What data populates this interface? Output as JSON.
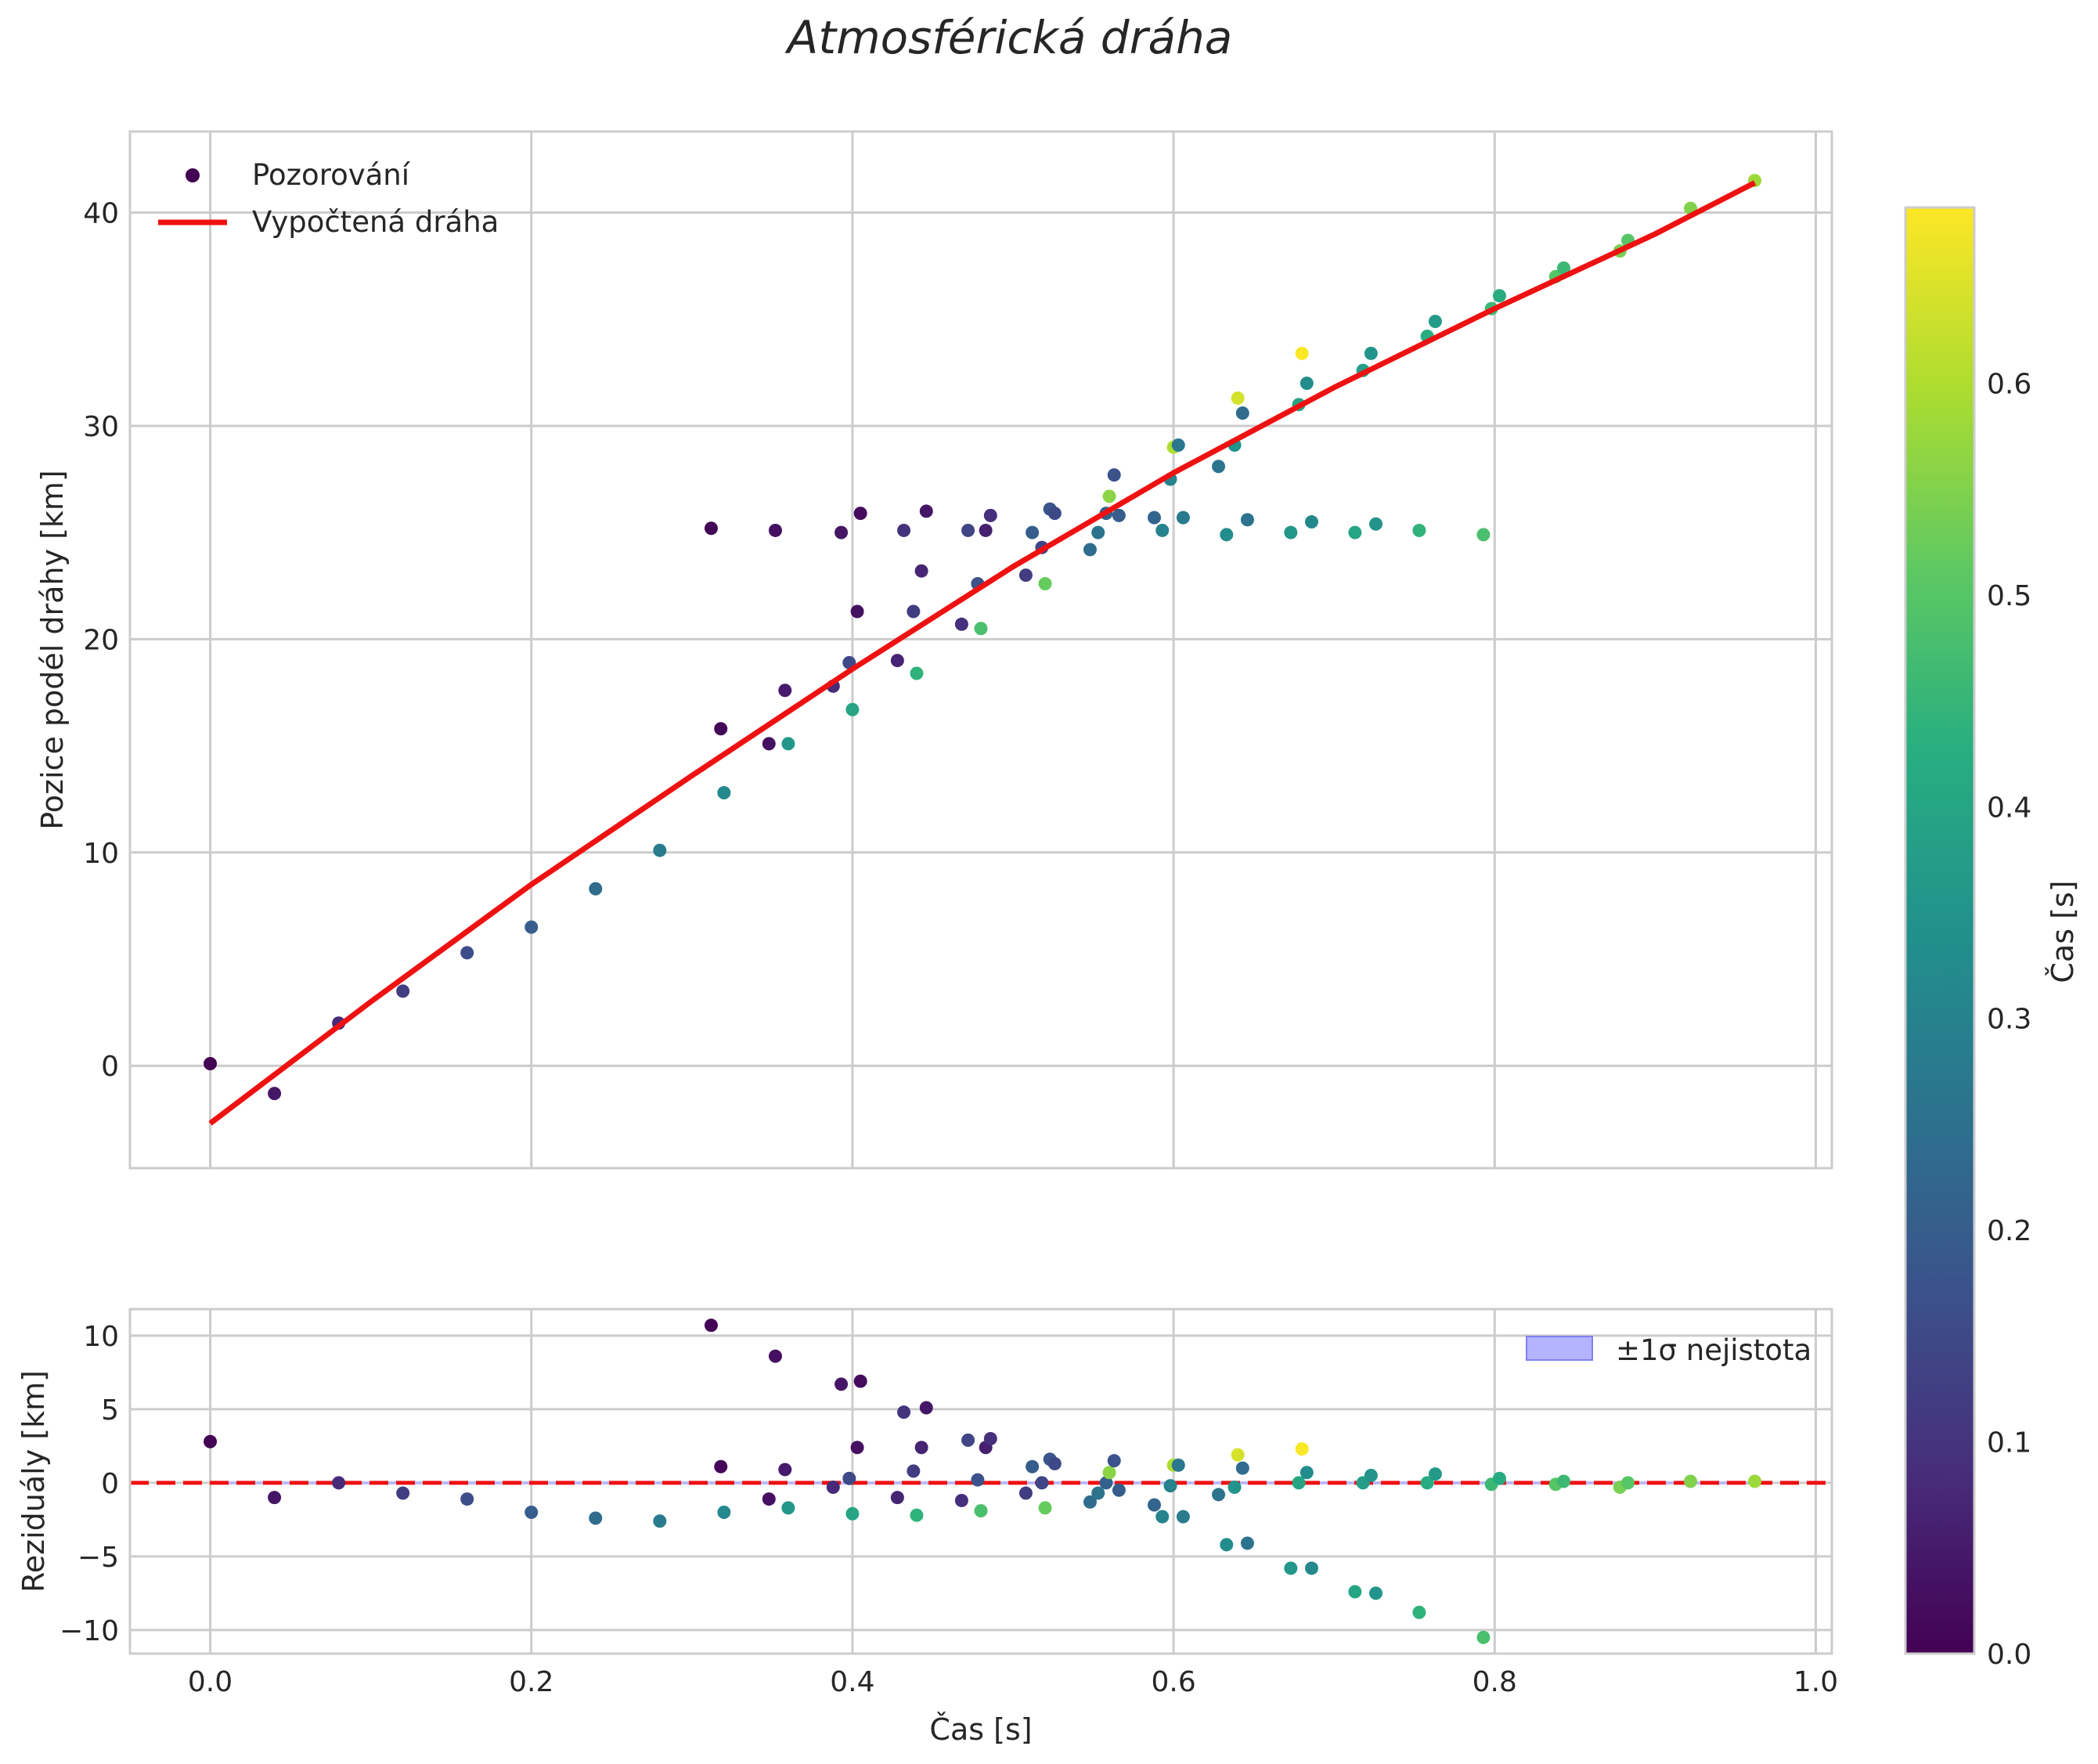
{
  "chart_data": [
    {
      "type": "scatter",
      "title": "Atmosférická dráha",
      "ylabel": "Pozice podél dráhy [km]",
      "xlim": [
        -0.05,
        1.01
      ],
      "ylim": [
        -4.8,
        43.8
      ],
      "xticks": [
        0.0,
        0.2,
        0.4,
        0.6,
        0.8,
        1.0
      ],
      "yticks": [
        0,
        10,
        20,
        30,
        40
      ],
      "ytick_labels": [
        "0",
        "10",
        "20",
        "30",
        "40"
      ],
      "legend": {
        "position": "top-left",
        "entries": [
          "Pozorování",
          "Vypočtená dráha"
        ]
      },
      "fit_line": {
        "name": "Vypočtená dráha",
        "color": "#ee1111",
        "x": [
          0.0,
          0.1,
          0.2,
          0.3,
          0.4,
          0.5,
          0.6,
          0.7,
          0.8,
          0.9,
          0.962
        ],
        "y": [
          -2.7,
          3.0,
          8.5,
          13.6,
          18.6,
          23.4,
          27.8,
          31.8,
          35.5,
          39.0,
          41.4
        ]
      },
      "points": [
        {
          "x": 0.0,
          "y": 0.1,
          "c": 0.0
        },
        {
          "x": 0.04,
          "y": -1.3,
          "c": 0.04
        },
        {
          "x": 0.08,
          "y": 2.0,
          "c": 0.08
        },
        {
          "x": 0.12,
          "y": 3.5,
          "c": 0.12
        },
        {
          "x": 0.16,
          "y": 5.3,
          "c": 0.16
        },
        {
          "x": 0.2,
          "y": 6.5,
          "c": 0.2
        },
        {
          "x": 0.24,
          "y": 8.3,
          "c": 0.24
        },
        {
          "x": 0.28,
          "y": 10.1,
          "c": 0.28
        },
        {
          "x": 0.312,
          "y": 25.2,
          "c": 0.005
        },
        {
          "x": 0.318,
          "y": 15.8,
          "c": 0.01
        },
        {
          "x": 0.32,
          "y": 12.8,
          "c": 0.32
        },
        {
          "x": 0.348,
          "y": 15.1,
          "c": 0.03
        },
        {
          "x": 0.352,
          "y": 25.1,
          "c": 0.03
        },
        {
          "x": 0.358,
          "y": 17.6,
          "c": 0.05
        },
        {
          "x": 0.36,
          "y": 15.1,
          "c": 0.36
        },
        {
          "x": 0.388,
          "y": 17.8,
          "c": 0.08
        },
        {
          "x": 0.393,
          "y": 25.0,
          "c": 0.04
        },
        {
          "x": 0.398,
          "y": 18.9,
          "c": 0.15
        },
        {
          "x": 0.4,
          "y": 16.7,
          "c": 0.4
        },
        {
          "x": 0.403,
          "y": 21.3,
          "c": 0.03
        },
        {
          "x": 0.405,
          "y": 25.9,
          "c": 0.02
        },
        {
          "x": 0.428,
          "y": 19.0,
          "c": 0.07
        },
        {
          "x": 0.432,
          "y": 25.1,
          "c": 0.1
        },
        {
          "x": 0.438,
          "y": 21.3,
          "c": 0.12
        },
        {
          "x": 0.44,
          "y": 18.4,
          "c": 0.44
        },
        {
          "x": 0.443,
          "y": 23.2,
          "c": 0.07
        },
        {
          "x": 0.446,
          "y": 26.0,
          "c": 0.04
        },
        {
          "x": 0.468,
          "y": 20.7,
          "c": 0.09
        },
        {
          "x": 0.472,
          "y": 25.1,
          "c": 0.14
        },
        {
          "x": 0.478,
          "y": 22.6,
          "c": 0.17
        },
        {
          "x": 0.48,
          "y": 20.5,
          "c": 0.48
        },
        {
          "x": 0.483,
          "y": 25.1,
          "c": 0.06
        },
        {
          "x": 0.486,
          "y": 25.8,
          "c": 0.09
        },
        {
          "x": 0.508,
          "y": 23.0,
          "c": 0.12
        },
        {
          "x": 0.512,
          "y": 25.0,
          "c": 0.2
        },
        {
          "x": 0.518,
          "y": 24.3,
          "c": 0.14
        },
        {
          "x": 0.52,
          "y": 22.6,
          "c": 0.52
        },
        {
          "x": 0.523,
          "y": 26.1,
          "c": 0.18
        },
        {
          "x": 0.526,
          "y": 25.9,
          "c": 0.15
        },
        {
          "x": 0.548,
          "y": 24.2,
          "c": 0.24
        },
        {
          "x": 0.553,
          "y": 25.0,
          "c": 0.26
        },
        {
          "x": 0.558,
          "y": 25.9,
          "c": 0.21
        },
        {
          "x": 0.56,
          "y": 26.7,
          "c": 0.56
        },
        {
          "x": 0.563,
          "y": 27.7,
          "c": 0.17
        },
        {
          "x": 0.566,
          "y": 25.8,
          "c": 0.2
        },
        {
          "x": 0.588,
          "y": 25.7,
          "c": 0.22
        },
        {
          "x": 0.593,
          "y": 25.1,
          "c": 0.3
        },
        {
          "x": 0.598,
          "y": 27.5,
          "c": 0.3
        },
        {
          "x": 0.6,
          "y": 29.0,
          "c": 0.6
        },
        {
          "x": 0.603,
          "y": 29.1,
          "c": 0.27
        },
        {
          "x": 0.606,
          "y": 25.7,
          "c": 0.28
        },
        {
          "x": 0.628,
          "y": 28.1,
          "c": 0.26
        },
        {
          "x": 0.633,
          "y": 24.9,
          "c": 0.33
        },
        {
          "x": 0.638,
          "y": 29.1,
          "c": 0.35
        },
        {
          "x": 0.64,
          "y": 31.3,
          "c": 0.64
        },
        {
          "x": 0.643,
          "y": 30.6,
          "c": 0.24
        },
        {
          "x": 0.646,
          "y": 25.6,
          "c": 0.26
        },
        {
          "x": 0.673,
          "y": 25.0,
          "c": 0.36
        },
        {
          "x": 0.678,
          "y": 31.0,
          "c": 0.4
        },
        {
          "x": 0.68,
          "y": 33.4,
          "c": 0.68
        },
        {
          "x": 0.683,
          "y": 32.0,
          "c": 0.33
        },
        {
          "x": 0.686,
          "y": 25.5,
          "c": 0.32
        },
        {
          "x": 0.713,
          "y": 25.0,
          "c": 0.4
        },
        {
          "x": 0.718,
          "y": 32.6,
          "c": 0.38
        },
        {
          "x": 0.723,
          "y": 33.4,
          "c": 0.35
        },
        {
          "x": 0.726,
          "y": 25.4,
          "c": 0.35
        },
        {
          "x": 0.753,
          "y": 25.1,
          "c": 0.44
        },
        {
          "x": 0.758,
          "y": 34.2,
          "c": 0.42
        },
        {
          "x": 0.763,
          "y": 34.9,
          "c": 0.37
        },
        {
          "x": 0.793,
          "y": 24.9,
          "c": 0.48
        },
        {
          "x": 0.798,
          "y": 35.5,
          "c": 0.46
        },
        {
          "x": 0.803,
          "y": 36.1,
          "c": 0.42
        },
        {
          "x": 0.838,
          "y": 37.0,
          "c": 0.5
        },
        {
          "x": 0.843,
          "y": 37.4,
          "c": 0.46
        },
        {
          "x": 0.878,
          "y": 38.2,
          "c": 0.54
        },
        {
          "x": 0.883,
          "y": 38.7,
          "c": 0.5
        },
        {
          "x": 0.922,
          "y": 40.2,
          "c": 0.55
        },
        {
          "x": 0.962,
          "y": 41.5,
          "c": 0.58
        }
      ]
    },
    {
      "type": "scatter",
      "xlabel": "Čas [s]",
      "ylabel": "Reziduály [km]",
      "xlim": [
        -0.05,
        1.01
      ],
      "ylim": [
        -11.6,
        11.8
      ],
      "xticks": [
        0.0,
        0.2,
        0.4,
        0.6,
        0.8,
        1.0
      ],
      "xtick_labels": [
        "0.0",
        "0.2",
        "0.4",
        "0.6",
        "0.8",
        "1.0"
      ],
      "yticks": [
        -10,
        -5,
        0,
        5,
        10
      ],
      "ytick_labels": [
        "−10",
        "−5",
        "0",
        "5",
        "10"
      ],
      "legend": {
        "position": "top-right",
        "entries": [
          "±1σ nejistota"
        ]
      },
      "uncertainty_band": {
        "sigma": 0.1,
        "color": "#b3b3ff"
      },
      "zero_line": {
        "y": 0,
        "color": "#ee1111",
        "style": "dashed"
      },
      "points": [
        {
          "x": 0.0,
          "y": 2.8,
          "c": 0.0
        },
        {
          "x": 0.04,
          "y": -1.0,
          "c": 0.04
        },
        {
          "x": 0.08,
          "y": 0.0,
          "c": 0.08
        },
        {
          "x": 0.12,
          "y": -0.7,
          "c": 0.12
        },
        {
          "x": 0.16,
          "y": -1.1,
          "c": 0.16
        },
        {
          "x": 0.2,
          "y": -2.0,
          "c": 0.2
        },
        {
          "x": 0.24,
          "y": -2.4,
          "c": 0.24
        },
        {
          "x": 0.28,
          "y": -2.6,
          "c": 0.28
        },
        {
          "x": 0.312,
          "y": 10.7,
          "c": 0.005
        },
        {
          "x": 0.318,
          "y": 1.1,
          "c": 0.01
        },
        {
          "x": 0.32,
          "y": -2.0,
          "c": 0.32
        },
        {
          "x": 0.348,
          "y": -1.1,
          "c": 0.03
        },
        {
          "x": 0.352,
          "y": 8.6,
          "c": 0.03
        },
        {
          "x": 0.358,
          "y": 0.9,
          "c": 0.05
        },
        {
          "x": 0.36,
          "y": -1.7,
          "c": 0.36
        },
        {
          "x": 0.388,
          "y": -0.3,
          "c": 0.08
        },
        {
          "x": 0.393,
          "y": 6.7,
          "c": 0.04
        },
        {
          "x": 0.398,
          "y": 0.3,
          "c": 0.15
        },
        {
          "x": 0.4,
          "y": -2.1,
          "c": 0.4
        },
        {
          "x": 0.403,
          "y": 2.4,
          "c": 0.03
        },
        {
          "x": 0.405,
          "y": 6.9,
          "c": 0.02
        },
        {
          "x": 0.428,
          "y": -1.0,
          "c": 0.07
        },
        {
          "x": 0.432,
          "y": 4.8,
          "c": 0.1
        },
        {
          "x": 0.438,
          "y": 0.8,
          "c": 0.12
        },
        {
          "x": 0.44,
          "y": -2.2,
          "c": 0.44
        },
        {
          "x": 0.443,
          "y": 2.4,
          "c": 0.07
        },
        {
          "x": 0.446,
          "y": 5.1,
          "c": 0.04
        },
        {
          "x": 0.468,
          "y": -1.2,
          "c": 0.09
        },
        {
          "x": 0.472,
          "y": 2.9,
          "c": 0.14
        },
        {
          "x": 0.478,
          "y": 0.2,
          "c": 0.17
        },
        {
          "x": 0.48,
          "y": -1.9,
          "c": 0.48
        },
        {
          "x": 0.483,
          "y": 2.4,
          "c": 0.06
        },
        {
          "x": 0.486,
          "y": 3.0,
          "c": 0.09
        },
        {
          "x": 0.508,
          "y": -0.7,
          "c": 0.12
        },
        {
          "x": 0.512,
          "y": 1.1,
          "c": 0.2
        },
        {
          "x": 0.518,
          "y": 0.0,
          "c": 0.14
        },
        {
          "x": 0.52,
          "y": -1.7,
          "c": 0.52
        },
        {
          "x": 0.523,
          "y": 1.6,
          "c": 0.18
        },
        {
          "x": 0.526,
          "y": 1.3,
          "c": 0.15
        },
        {
          "x": 0.548,
          "y": -1.3,
          "c": 0.24
        },
        {
          "x": 0.553,
          "y": -0.7,
          "c": 0.26
        },
        {
          "x": 0.558,
          "y": 0.0,
          "c": 0.21
        },
        {
          "x": 0.56,
          "y": 0.7,
          "c": 0.56
        },
        {
          "x": 0.563,
          "y": 1.5,
          "c": 0.17
        },
        {
          "x": 0.566,
          "y": -0.5,
          "c": 0.2
        },
        {
          "x": 0.588,
          "y": -1.5,
          "c": 0.22
        },
        {
          "x": 0.593,
          "y": -2.3,
          "c": 0.3
        },
        {
          "x": 0.598,
          "y": -0.2,
          "c": 0.3
        },
        {
          "x": 0.6,
          "y": 1.2,
          "c": 0.6
        },
        {
          "x": 0.603,
          "y": 1.2,
          "c": 0.27
        },
        {
          "x": 0.606,
          "y": -2.3,
          "c": 0.28
        },
        {
          "x": 0.628,
          "y": -0.8,
          "c": 0.26
        },
        {
          "x": 0.633,
          "y": -4.2,
          "c": 0.33
        },
        {
          "x": 0.638,
          "y": -0.3,
          "c": 0.35
        },
        {
          "x": 0.64,
          "y": 1.9,
          "c": 0.64
        },
        {
          "x": 0.643,
          "y": 1.0,
          "c": 0.24
        },
        {
          "x": 0.646,
          "y": -4.1,
          "c": 0.26
        },
        {
          "x": 0.673,
          "y": -5.8,
          "c": 0.36
        },
        {
          "x": 0.678,
          "y": 0.0,
          "c": 0.4
        },
        {
          "x": 0.68,
          "y": 2.3,
          "c": 0.68
        },
        {
          "x": 0.683,
          "y": 0.7,
          "c": 0.33
        },
        {
          "x": 0.686,
          "y": -5.8,
          "c": 0.32
        },
        {
          "x": 0.713,
          "y": -7.4,
          "c": 0.4
        },
        {
          "x": 0.718,
          "y": 0.0,
          "c": 0.38
        },
        {
          "x": 0.723,
          "y": 0.5,
          "c": 0.35
        },
        {
          "x": 0.726,
          "y": -7.5,
          "c": 0.35
        },
        {
          "x": 0.753,
          "y": -8.8,
          "c": 0.44
        },
        {
          "x": 0.758,
          "y": 0.0,
          "c": 0.42
        },
        {
          "x": 0.763,
          "y": 0.6,
          "c": 0.37
        },
        {
          "x": 0.793,
          "y": -10.5,
          "c": 0.48
        },
        {
          "x": 0.798,
          "y": -0.1,
          "c": 0.46
        },
        {
          "x": 0.803,
          "y": 0.3,
          "c": 0.42
        },
        {
          "x": 0.838,
          "y": -0.1,
          "c": 0.5
        },
        {
          "x": 0.843,
          "y": 0.1,
          "c": 0.46
        },
        {
          "x": 0.878,
          "y": -0.3,
          "c": 0.54
        },
        {
          "x": 0.883,
          "y": 0.0,
          "c": 0.5
        },
        {
          "x": 0.922,
          "y": 0.1,
          "c": 0.55
        },
        {
          "x": 0.962,
          "y": 0.1,
          "c": 0.58
        }
      ]
    },
    {
      "type": "colorbar",
      "label": "Čas [s]",
      "colormap": "viridis",
      "range": [
        0.0,
        0.683
      ],
      "ticks": [
        0.0,
        0.1,
        0.2,
        0.3,
        0.4,
        0.5,
        0.6
      ],
      "tick_labels": [
        "0.0",
        "0.1",
        "0.2",
        "0.3",
        "0.4",
        "0.5",
        "0.6"
      ]
    }
  ]
}
